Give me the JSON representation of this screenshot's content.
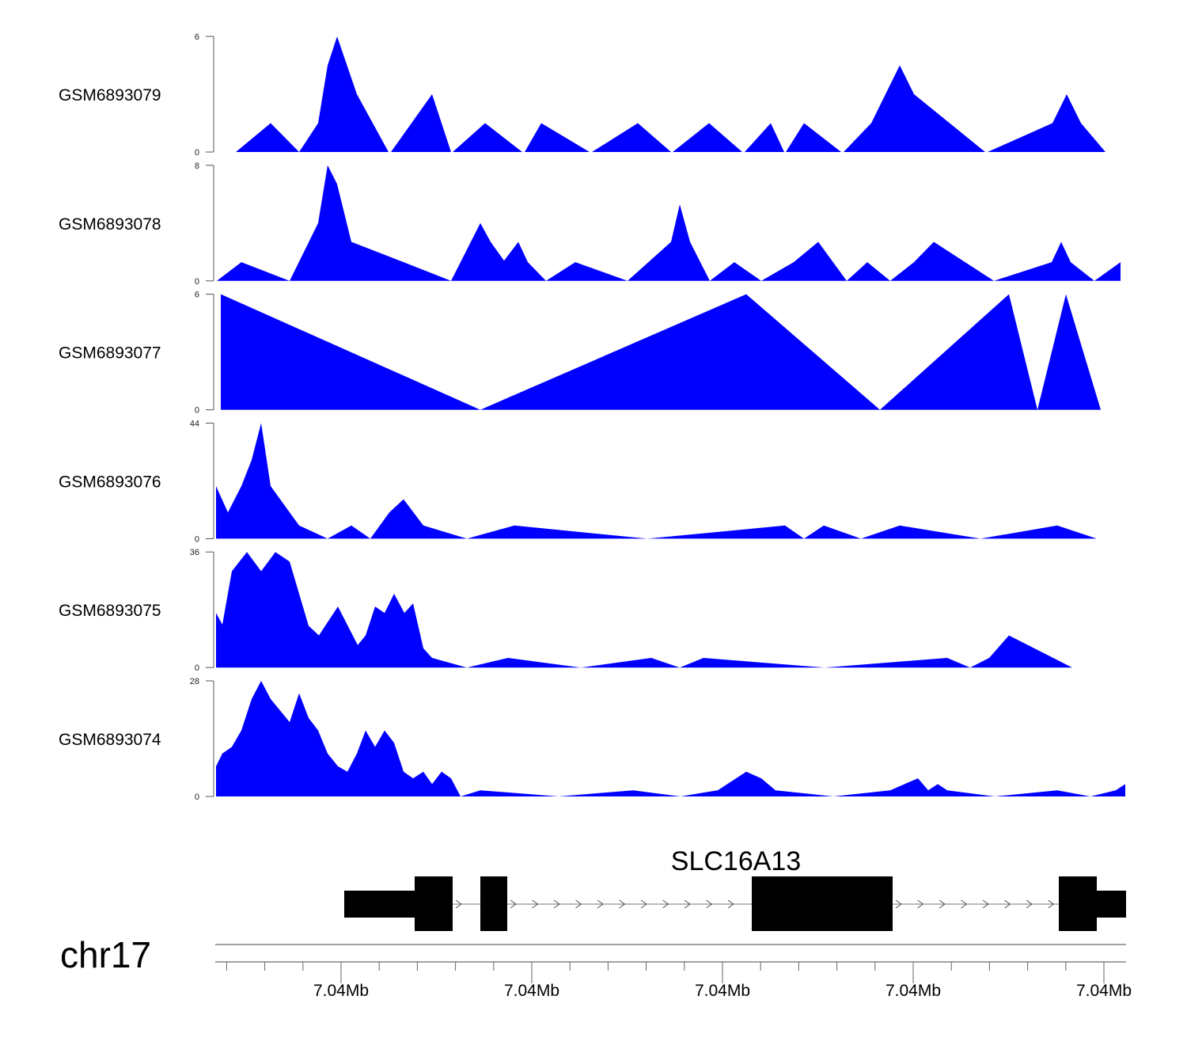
{
  "chart_data": {
    "type": "area",
    "title": "",
    "fill_color": "#0000FF",
    "region": {
      "chrom": "chr17",
      "start_bp": 7036364,
      "end_bp": 7040968,
      "x_unit": "bp offset from region start"
    },
    "tracks": [
      {
        "name": "GSM6893079",
        "ylim": [
          0,
          6
        ],
        "ticks": [
          "0",
          "6"
        ],
        "points": [
          [
            104,
            0
          ],
          [
            280,
            1.5
          ],
          [
            424,
            0
          ],
          [
            520,
            1.5
          ],
          [
            568,
            4.5
          ],
          [
            616,
            6
          ],
          [
            716,
            3
          ],
          [
            876,
            0
          ],
          [
            888,
            0
          ],
          [
            1096,
            3
          ],
          [
            1192,
            0
          ],
          [
            1200,
            0
          ],
          [
            1364,
            1.5
          ],
          [
            1552,
            0
          ],
          [
            1564,
            0
          ],
          [
            1648,
            1.5
          ],
          [
            1892,
            0
          ],
          [
            1904,
            0
          ],
          [
            2136,
            1.5
          ],
          [
            2304,
            0
          ],
          [
            2312,
            0
          ],
          [
            2496,
            1.5
          ],
          [
            2664,
            0
          ],
          [
            2676,
            0
          ],
          [
            2808,
            1.5
          ],
          [
            2876,
            0
          ],
          [
            2884,
            0
          ],
          [
            2976,
            1.5
          ],
          [
            3164,
            0
          ],
          [
            3176,
            0
          ],
          [
            3316,
            1.5
          ],
          [
            3460,
            4.5
          ],
          [
            3532,
            3
          ],
          [
            3892,
            0
          ],
          [
            3904,
            0
          ],
          [
            4232,
            1.5
          ],
          [
            4304,
            3
          ],
          [
            4376,
            1.5
          ],
          [
            4500,
            0
          ]
        ]
      },
      {
        "name": "GSM6893078",
        "ylim": [
          0,
          8
        ],
        "ticks": [
          "0",
          "8"
        ],
        "points": [
          [
            8,
            0
          ],
          [
            132,
            1.3
          ],
          [
            376,
            0
          ],
          [
            520,
            4
          ],
          [
            568,
            8
          ],
          [
            616,
            6.7
          ],
          [
            688,
            2.7
          ],
          [
            952,
            1.3
          ],
          [
            1192,
            0
          ],
          [
            1340,
            4
          ],
          [
            1392,
            2.7
          ],
          [
            1460,
            1.4
          ],
          [
            1532,
            2.7
          ],
          [
            1580,
            1.3
          ],
          [
            1672,
            0
          ],
          [
            1820,
            1.3
          ],
          [
            2084,
            0
          ],
          [
            2304,
            2.7
          ],
          [
            2348,
            5.3
          ],
          [
            2400,
            2.7
          ],
          [
            2500,
            0
          ],
          [
            2624,
            1.3
          ],
          [
            2760,
            0
          ],
          [
            2924,
            1.3
          ],
          [
            3048,
            2.7
          ],
          [
            3192,
            0
          ],
          [
            3296,
            1.3
          ],
          [
            3412,
            0
          ],
          [
            3532,
            1.3
          ],
          [
            3632,
            2.7
          ],
          [
            3936,
            0
          ],
          [
            4228,
            1.3
          ],
          [
            4276,
            2.7
          ],
          [
            4324,
            1.3
          ],
          [
            4444,
            0
          ],
          [
            4576,
            1.3
          ],
          [
            4576,
            0
          ]
        ]
      },
      {
        "name": "GSM6893077",
        "ylim": [
          0,
          6
        ],
        "ticks": [
          "0",
          "6"
        ],
        "points": [
          [
            28,
            0
          ],
          [
            28,
            6
          ],
          [
            1340,
            0
          ],
          [
            2684,
            6
          ],
          [
            3360,
            0
          ],
          [
            4012,
            6
          ],
          [
            4156,
            0
          ],
          [
            4300,
            6
          ],
          [
            4476,
            0
          ]
        ]
      },
      {
        "name": "GSM6893076",
        "ylim": [
          0,
          44
        ],
        "ticks": [
          "0",
          "44"
        ],
        "points": [
          [
            4,
            0
          ],
          [
            4,
            20
          ],
          [
            64,
            10
          ],
          [
            132,
            20
          ],
          [
            184,
            30
          ],
          [
            232,
            44
          ],
          [
            280,
            20
          ],
          [
            424,
            5
          ],
          [
            568,
            0
          ],
          [
            688,
            5
          ],
          [
            784,
            0
          ],
          [
            880,
            10
          ],
          [
            952,
            15
          ],
          [
            1052,
            5
          ],
          [
            1272,
            0
          ],
          [
            1512,
            5
          ],
          [
            2184,
            0
          ],
          [
            2880,
            5
          ],
          [
            2976,
            0
          ],
          [
            3076,
            5
          ],
          [
            3264,
            0
          ],
          [
            3460,
            5
          ],
          [
            3868,
            0
          ],
          [
            4256,
            5
          ],
          [
            4456,
            0
          ]
        ]
      },
      {
        "name": "GSM6893075",
        "ylim": [
          0,
          36
        ],
        "ticks": [
          "0",
          "36"
        ],
        "points": [
          [
            4,
            0
          ],
          [
            4,
            17
          ],
          [
            36,
            13.4
          ],
          [
            84,
            30
          ],
          [
            160,
            36
          ],
          [
            232,
            30
          ],
          [
            304,
            36
          ],
          [
            376,
            33
          ],
          [
            472,
            13
          ],
          [
            524,
            10
          ],
          [
            620,
            19
          ],
          [
            720,
            7
          ],
          [
            760,
            10
          ],
          [
            808,
            19
          ],
          [
            856,
            17
          ],
          [
            904,
            23
          ],
          [
            956,
            17
          ],
          [
            1000,
            20
          ],
          [
            1052,
            6
          ],
          [
            1096,
            3
          ],
          [
            1272,
            0
          ],
          [
            1480,
            3
          ],
          [
            1848,
            0
          ],
          [
            2204,
            3
          ],
          [
            2348,
            0
          ],
          [
            2468,
            3
          ],
          [
            3080,
            0
          ],
          [
            3700,
            3
          ],
          [
            3816,
            0
          ],
          [
            3912,
            3
          ],
          [
            4012,
            10
          ],
          [
            4332,
            0
          ]
        ]
      },
      {
        "name": "GSM6893074",
        "ylim": [
          0,
          28
        ],
        "ticks": [
          "0",
          "28"
        ],
        "points": [
          [
            4,
            0
          ],
          [
            4,
            7.3
          ],
          [
            36,
            10.4
          ],
          [
            84,
            12
          ],
          [
            132,
            16
          ],
          [
            184,
            23.6
          ],
          [
            232,
            28
          ],
          [
            280,
            23.6
          ],
          [
            376,
            18
          ],
          [
            424,
            25
          ],
          [
            472,
            19
          ],
          [
            520,
            16
          ],
          [
            568,
            10.4
          ],
          [
            620,
            7.3
          ],
          [
            668,
            6
          ],
          [
            716,
            10.4
          ],
          [
            760,
            16
          ],
          [
            808,
            12
          ],
          [
            856,
            16
          ],
          [
            904,
            13
          ],
          [
            952,
            6
          ],
          [
            1000,
            4.4
          ],
          [
            1052,
            6
          ],
          [
            1096,
            3
          ],
          [
            1144,
            6
          ],
          [
            1192,
            4.4
          ],
          [
            1240,
            0
          ],
          [
            1340,
            1.5
          ],
          [
            1736,
            0
          ],
          [
            2112,
            1.5
          ],
          [
            2352,
            0
          ],
          [
            2540,
            1.5
          ],
          [
            2684,
            6
          ],
          [
            2760,
            4.4
          ],
          [
            2832,
            1.5
          ],
          [
            3124,
            0
          ],
          [
            3412,
            1.5
          ],
          [
            3552,
            4.4
          ],
          [
            3604,
            1.5
          ],
          [
            3652,
            3
          ],
          [
            3700,
            1.5
          ],
          [
            3940,
            0
          ],
          [
            4256,
            1.5
          ],
          [
            4424,
            0
          ],
          [
            4552,
            1.5
          ],
          [
            4600,
            3
          ],
          [
            4600,
            0
          ]
        ]
      }
    ],
    "gene": {
      "name": "SLC16A13",
      "utr": [
        [
          652,
          1008
        ],
        [
          4456,
          4604
        ]
      ],
      "cds": [
        [
          1008,
          1200
        ],
        [
          1340,
          1476
        ],
        [
          2712,
          3424
        ],
        [
          4264,
          4456
        ]
      ],
      "introns": [
        [
          1200,
          1340
        ],
        [
          1476,
          2712
        ],
        [
          3424,
          4264
        ]
      ]
    },
    "axis": {
      "chrom_label": "chr17",
      "major_ticks": [
        {
          "pos": 636,
          "label": "7.04Mb"
        },
        {
          "pos": 1600,
          "label": "7.04Mb"
        },
        {
          "pos": 2564,
          "label": "7.04Mb"
        },
        {
          "pos": 3528,
          "label": "7.04Mb"
        },
        {
          "pos": 4492,
          "label": "7.04Mb"
        }
      ],
      "minor_tick_step": 192.8
    }
  }
}
